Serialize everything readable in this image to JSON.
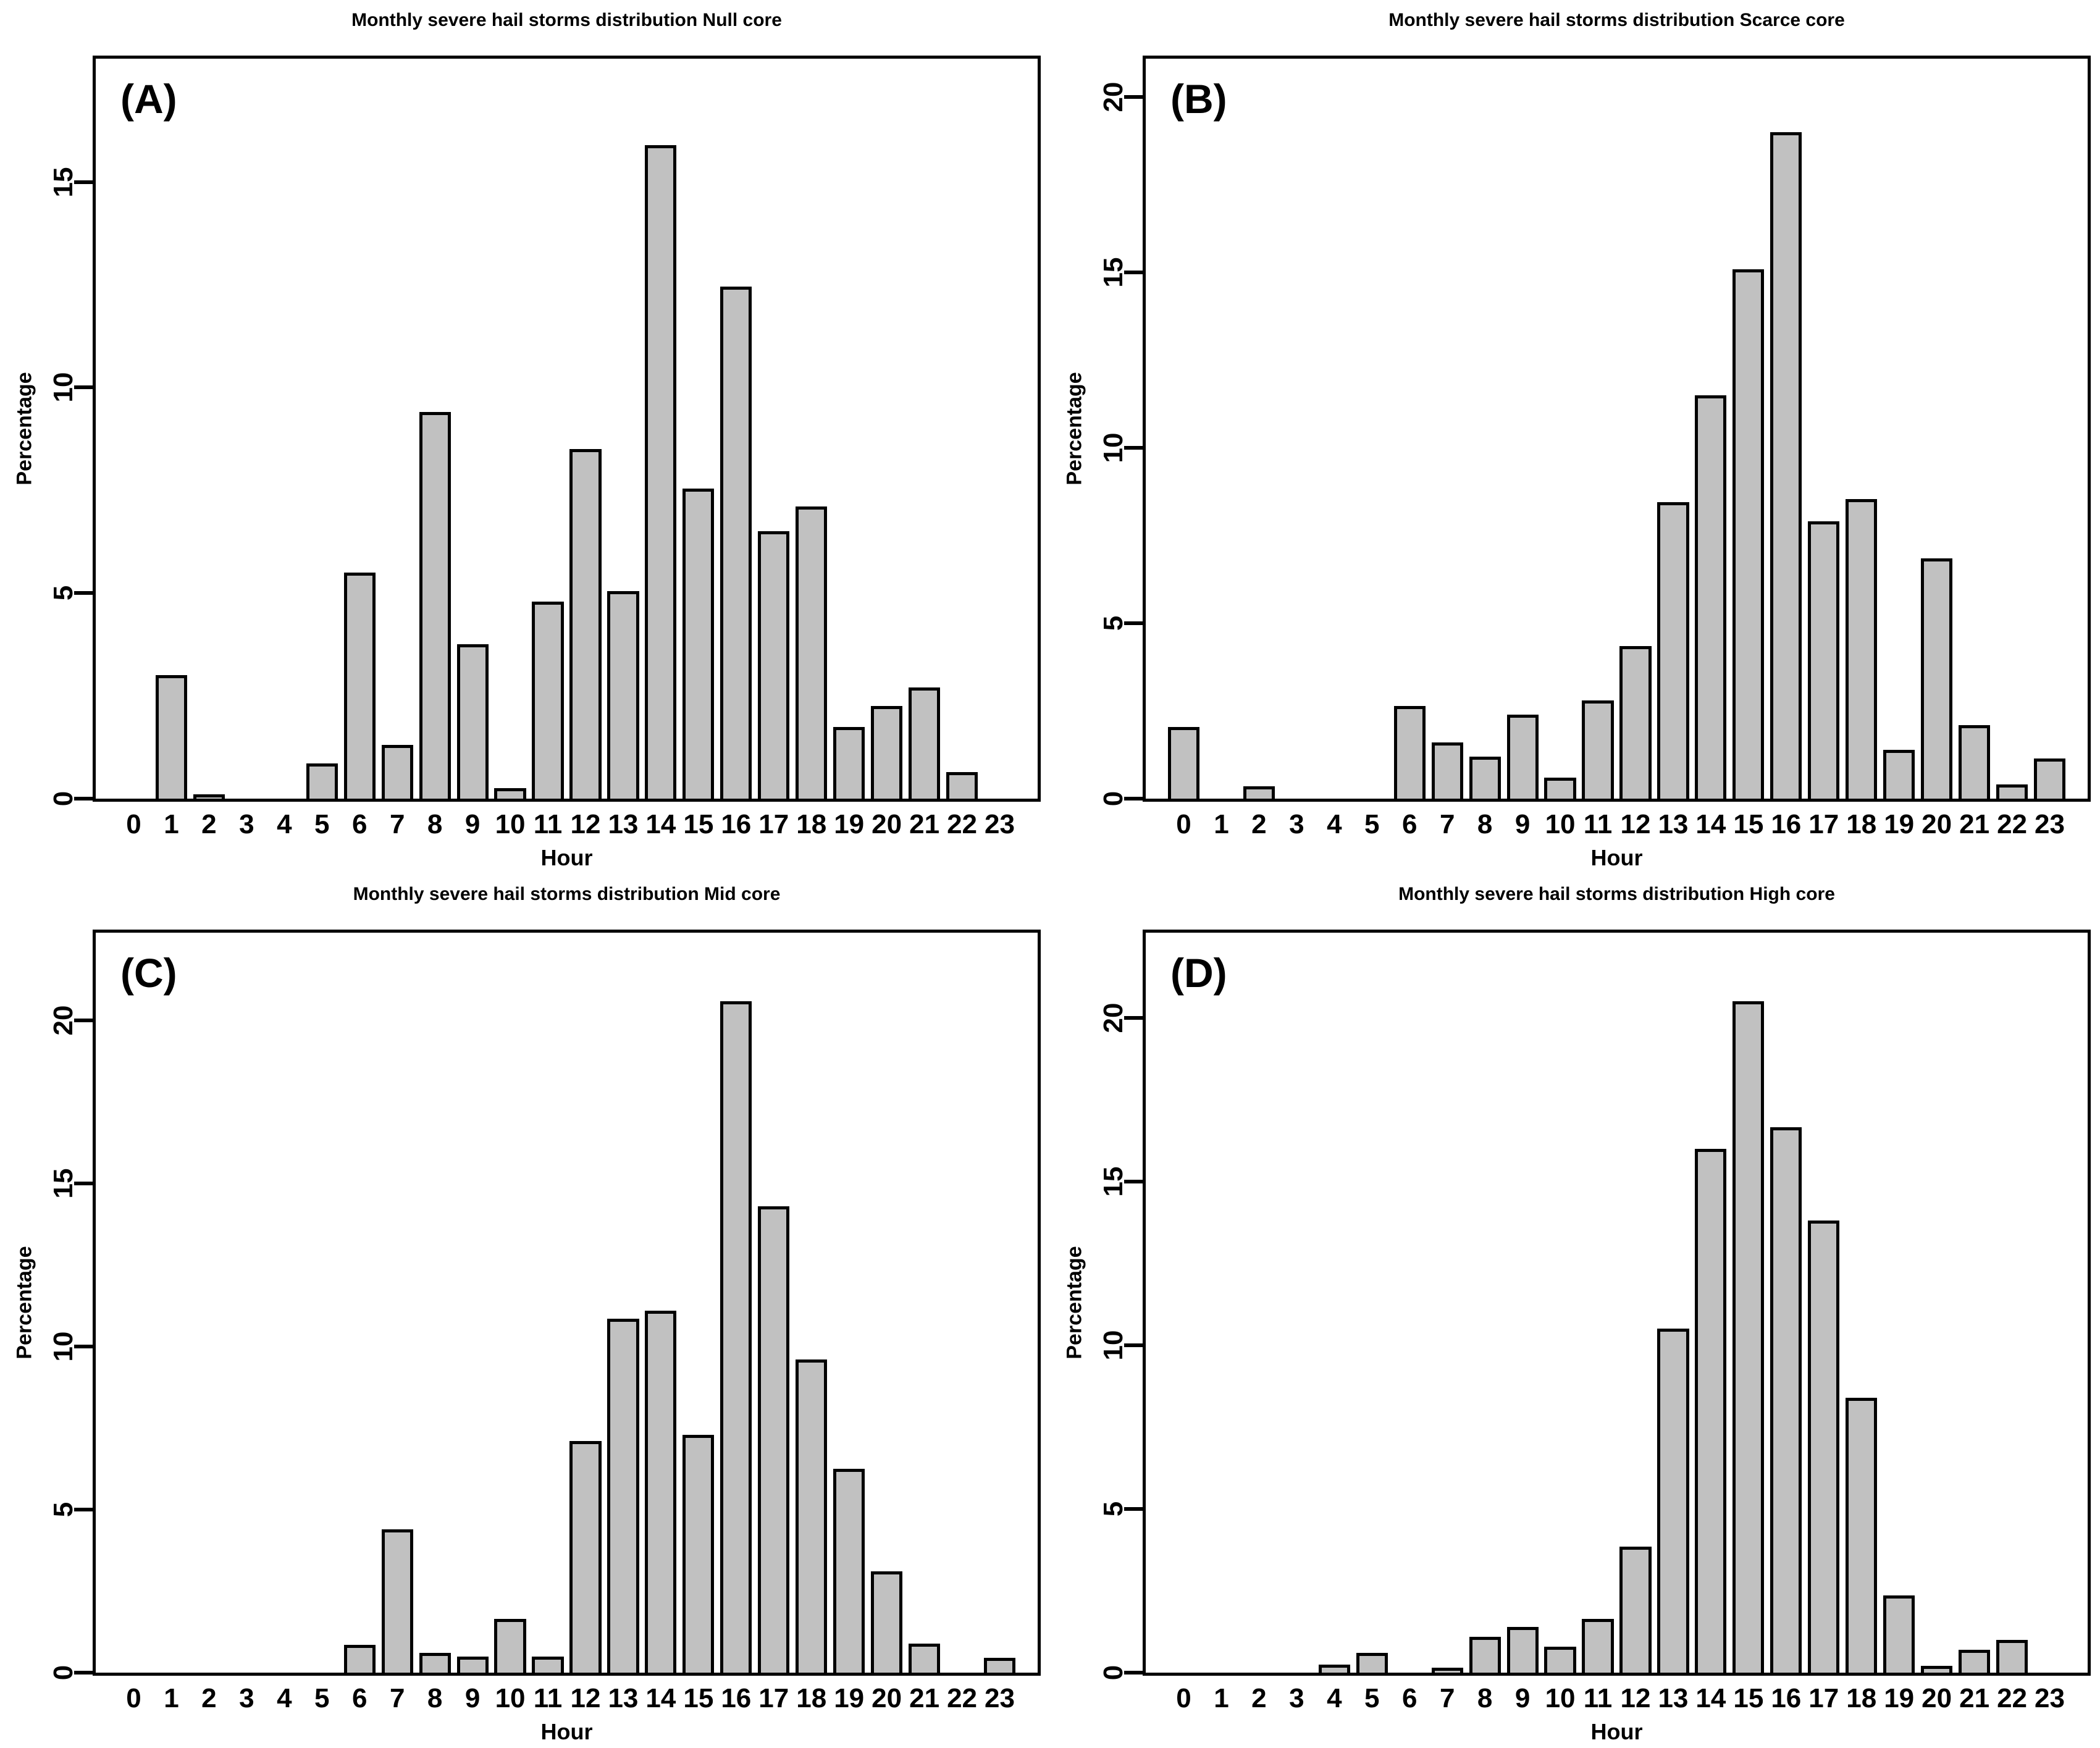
{
  "style": {
    "background": "#ffffff",
    "bar_fill": "#c1c1c1",
    "bar_border": "#000000",
    "axis_color": "#000000"
  },
  "chart_data": [
    {
      "type": "bar",
      "panel_label": "(A)",
      "title": "Monthly severe hail storms distribution Null core",
      "xlabel": "Hour",
      "ylabel": "Percentage",
      "categories": [
        "0",
        "1",
        "2",
        "3",
        "4",
        "5",
        "6",
        "7",
        "8",
        "9",
        "10",
        "11",
        "12",
        "13",
        "14",
        "15",
        "16",
        "17",
        "18",
        "19",
        "20",
        "21",
        "22",
        "23"
      ],
      "values": [
        0,
        3.0,
        0.1,
        0,
        0,
        0.85,
        5.5,
        1.3,
        9.4,
        3.75,
        0.25,
        4.8,
        8.5,
        5.05,
        15.9,
        7.55,
        12.45,
        6.5,
        7.1,
        1.75,
        2.25,
        2.7,
        0.65,
        0
      ],
      "yticks": [
        0,
        5,
        10,
        15
      ],
      "ylim": [
        0,
        18.0
      ],
      "grid": false,
      "legend": null,
      "bar_fill": "#c1c1c1"
    },
    {
      "type": "bar",
      "panel_label": "(B)",
      "title": "Monthly severe hail storms distribution Scarce core",
      "xlabel": "Hour",
      "ylabel": "Percentage",
      "categories": [
        "0",
        "1",
        "2",
        "3",
        "4",
        "5",
        "6",
        "7",
        "8",
        "9",
        "10",
        "11",
        "12",
        "13",
        "14",
        "15",
        "16",
        "17",
        "18",
        "19",
        "20",
        "21",
        "22",
        "23"
      ],
      "values": [
        2.05,
        0,
        0.35,
        0,
        0,
        0,
        2.65,
        1.6,
        1.2,
        2.4,
        0.6,
        2.8,
        4.35,
        8.45,
        11.5,
        15.1,
        19.0,
        7.9,
        8.55,
        1.4,
        6.85,
        2.1,
        0.4,
        1.15
      ],
      "yticks": [
        0,
        5,
        10,
        15,
        20
      ],
      "ylim": [
        0,
        21.1
      ],
      "grid": false,
      "legend": null,
      "bar_fill": "#c1c1c1"
    },
    {
      "type": "bar",
      "panel_label": "(C)",
      "title": "Monthly severe hail storms distribution Mid core",
      "xlabel": "Hour",
      "ylabel": "Percentage",
      "categories": [
        "0",
        "1",
        "2",
        "3",
        "4",
        "5",
        "6",
        "7",
        "8",
        "9",
        "10",
        "11",
        "12",
        "13",
        "14",
        "15",
        "16",
        "17",
        "18",
        "19",
        "20",
        "21",
        "22",
        "23"
      ],
      "values": [
        0,
        0,
        0,
        0,
        0,
        0,
        0.85,
        4.4,
        0.6,
        0.5,
        1.65,
        0.5,
        7.1,
        10.85,
        11.1,
        7.3,
        20.6,
        14.3,
        9.6,
        6.25,
        3.1,
        0.9,
        0,
        0.45
      ],
      "yticks": [
        0,
        5,
        10,
        15,
        20
      ],
      "ylim": [
        0,
        22.7
      ],
      "grid": false,
      "legend": null,
      "bar_fill": "#c1c1c1"
    },
    {
      "type": "bar",
      "panel_label": "(D)",
      "title": "Monthly severe hail storms distribution High core",
      "xlabel": "Hour",
      "ylabel": "Percentage",
      "categories": [
        "0",
        "1",
        "2",
        "3",
        "4",
        "5",
        "6",
        "7",
        "8",
        "9",
        "10",
        "11",
        "12",
        "13",
        "14",
        "15",
        "16",
        "17",
        "18",
        "19",
        "20",
        "21",
        "22",
        "23"
      ],
      "values": [
        0,
        0,
        0,
        0,
        0.25,
        0.6,
        0,
        0.15,
        1.1,
        1.4,
        0.8,
        1.65,
        3.85,
        10.5,
        16.0,
        20.5,
        16.65,
        13.8,
        8.4,
        2.35,
        0.2,
        0.7,
        1.0,
        0
      ],
      "yticks": [
        0,
        5,
        10,
        15,
        20
      ],
      "ylim": [
        0,
        22.6
      ],
      "grid": false,
      "legend": null,
      "bar_fill": "#c1c1c1"
    }
  ]
}
